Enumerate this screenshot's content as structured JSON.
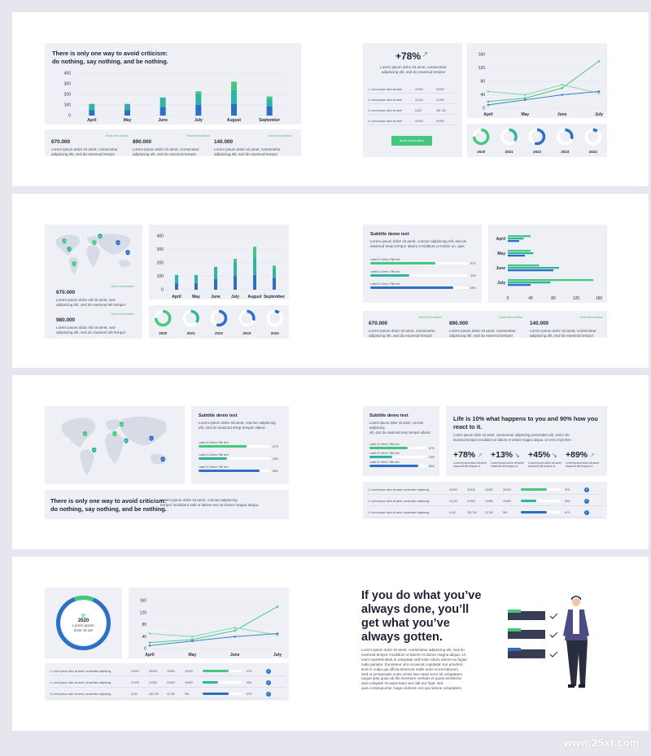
{
  "quote_criticism": [
    "There is only one way to avoid criticism:",
    "do nothing, say nothing, and be nothing."
  ],
  "lorem_two_line": [
    "Lorem ipsum dolor sit amet, consectetur",
    "adipiscing elit, sed do eiusmod tempor"
  ],
  "stats": {
    "s1": "670.000",
    "s2": "890.000",
    "s3": "140.000",
    "s4": "980.000",
    "more": "More information"
  },
  "slide1_chart": {
    "type": "bar",
    "categories": [
      "April",
      "May",
      "June",
      "July",
      "August",
      "September"
    ],
    "yticks": [
      "400",
      "300",
      "200",
      "100",
      "0"
    ],
    "series": [
      {
        "values": [
          50,
          50,
          80,
          100,
          110,
          90
        ]
      },
      {
        "values": [
          60,
          60,
          90,
          110,
          130,
          70
        ]
      },
      {
        "values": [
          0,
          0,
          0,
          20,
          80,
          20
        ]
      }
    ]
  },
  "slide2": {
    "percent": "+78%",
    "desc": [
      "Lorem ipsum dolor sit amet, consectetur",
      "adipiscing elit, sed do eiusmod tempor"
    ],
    "rows": [
      {
        "label": "1. Lorem ipsum dolor sit amet",
        "a": "15.900",
        "b": "25.930"
      },
      {
        "label": "2. Lorem ipsum dolor sit amet",
        "a": "13.100",
        "b": "14.900"
      },
      {
        "label": "3. Lorem ipsum dolor sit amet",
        "a": "8.120",
        "b": "150.730"
      },
      {
        "label": "4. Lorem ipsum dolor sit amet",
        "a": "15.920",
        "b": "16.900"
      }
    ],
    "button": "More information"
  },
  "line_chart": {
    "type": "line",
    "x": [
      "April",
      "May",
      "June",
      "July"
    ],
    "yticks": [
      "160",
      "120",
      "80",
      "40",
      "0"
    ],
    "ylim": [
      0,
      160
    ],
    "series": [
      {
        "color": "#44c87e",
        "values": [
          20,
          30,
          60,
          140
        ]
      },
      {
        "color": "#7ed8b2",
        "values": [
          50,
          40,
          70,
          45
        ]
      },
      {
        "color": "#3a7fc4",
        "values": [
          10,
          25,
          40,
          50
        ]
      }
    ]
  },
  "donut_years": [
    "2020",
    "2021",
    "2022",
    "2023",
    "2024"
  ],
  "donut_values": [
    0.75,
    0.35,
    0.55,
    0.3,
    0.1
  ],
  "slide3_chart": {
    "type": "bar",
    "categories": [
      "April",
      "May",
      "June",
      "July",
      "August",
      "September"
    ],
    "yticks": [
      "400",
      "300",
      "200",
      "100",
      "0"
    ],
    "series": [
      {
        "values": [
          50,
          50,
          80,
          100,
          110,
          90
        ]
      },
      {
        "values": [
          60,
          60,
          90,
          110,
          130,
          70
        ]
      },
      {
        "values": [
          0,
          0,
          0,
          20,
          80,
          20
        ]
      }
    ]
  },
  "map_desc": [
    "Lorem ipsum dolor elit sit amet, sed",
    "adipiscing elit, sed do eiusmod elit tempor"
  ],
  "subtitle": "Subtitle demo text",
  "subtitle_desc": [
    "Lorem ipsum dolor sit amet, conctur adipiscing elit, sed do",
    "eiusmod temp tempor ullamc incididunt ut minim un, quis"
  ],
  "label_demo": "Label 01 Demo Title text",
  "progress": [
    {
      "pct": "67%",
      "value": 0.67,
      "color": "#44c87e"
    },
    {
      "pct": "40%",
      "value": 0.4,
      "color": "#2fb3a3"
    },
    {
      "pct": "85%",
      "value": 0.85,
      "color": "#2b6fc7"
    }
  ],
  "hbar_chart": {
    "type": "bar",
    "categories": [
      "April",
      "May",
      "June",
      "July"
    ],
    "xticks": [
      "0",
      "40",
      "80",
      "120",
      "160"
    ],
    "xlim": [
      0,
      160
    ],
    "series": [
      {
        "color": "#44c87e",
        "values": [
          40,
          40,
          55,
          150
        ]
      },
      {
        "color": "#2fb3a3",
        "values": [
          28,
          45,
          90,
          75
        ]
      },
      {
        "color": "#2b6fc7",
        "values": [
          20,
          30,
          80,
          40
        ]
      }
    ]
  },
  "slide5_desc": [
    "Lorem ipsum dolor sit amet, conctur adipiscing",
    "elit, sed do eiusmod temp tempor ullamc",
    "tempor incididunt velit ut labore est os dolore magna aliqua."
  ],
  "slide6": {
    "title": [
      "Life is 10% what happens to you and 90% how you",
      "react to it."
    ],
    "desc": [
      "Lorem ipsum dolor sit amet, consectetur adipiscing prehenderit elit, sed in do",
      "eiusmod tempor incididunt ut labore et dolore magna aliqua. Ut enim reprehen"
    ],
    "kpis": [
      "+78%",
      "+13%",
      "+45%",
      "+89%"
    ],
    "kpi_desc": [
      "Lorem ipsum dolor sit amet",
      "eiusmod elit tempor ut"
    ]
  },
  "table": {
    "rows": [
      {
        "label": "1. Lorem ipsum dolor sit amet, consectetur adipiscing",
        "a": "15.900",
        "b": "25.930",
        "c": "15.890",
        "d": "25.930",
        "pct": "67%",
        "v": 0.67,
        "color": "#44c87e"
      },
      {
        "label": "2. Lorem ipsum dolor sit amet, consectetur adipiscing",
        "a": "13.100",
        "b": "14.900",
        "c": "13.890",
        "d": "15.690",
        "pct": "40%",
        "v": 0.4,
        "color": "#2fb3a3"
      },
      {
        "label": "3. Lorem ipsum dolor sit amet, consectetur adipiscing",
        "a": "8.120",
        "b": "150.730",
        "c": "22.780",
        "d": "900",
        "pct": "67%",
        "v": 0.67,
        "color": "#2b6fc7"
      }
    ]
  },
  "slide7": {
    "year": "2020",
    "lines": [
      "Lorem ipsum",
      "dolor sit am"
    ]
  },
  "slide8": {
    "quote": [
      "If you do what you’ve",
      "always done, you’ll",
      "get what you’ve",
      "always gotten."
    ],
    "body": [
      "Lorem ipsum dolor sit amet, consectetur adipiscing elit, sed do",
      "eiusmod tempor incididunt ut labore et dolore magna aliqua. Ut",
      "enim reprehenderit in voluptate velit esse cillum dolore eu fugiat",
      "nulla pariatur. Excepteur sint occaecat cupidatat non proident,",
      "sunt in culpa qui officia deserunt mollit anim id est laborum.",
      "Sed ut perspiciatis unde omnis iste natus error sit voluptatem",
      "eaque ipsa quae ab illo inventore veritatis et quasi architecto",
      "quia voluptas sit aspernatur aut odit aut fugit, sed",
      "quia consequuntur magni dolores eos qui ratione voluptatem"
    ]
  },
  "watermark": "www.25xt.com"
}
